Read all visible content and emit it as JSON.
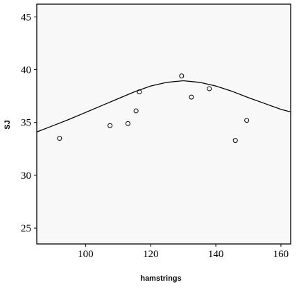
{
  "chart_data": {
    "type": "scatter",
    "title": "",
    "xlabel": "hamstrings",
    "ylabel": "SJ",
    "xlim": [
      85,
      163
    ],
    "ylim": [
      23.5,
      46.2
    ],
    "xticks": [
      100,
      120,
      140,
      160
    ],
    "yticks": [
      25,
      30,
      35,
      40,
      45
    ],
    "grid": false,
    "series": [
      {
        "points": [
          {
            "x": 92,
            "y": 33.5
          },
          {
            "x": 107.5,
            "y": 34.7
          },
          {
            "x": 113,
            "y": 34.9
          },
          {
            "x": 115.5,
            "y": 36.1
          },
          {
            "x": 116.5,
            "y": 37.9
          },
          {
            "x": 129.5,
            "y": 39.4
          },
          {
            "x": 132.5,
            "y": 37.4
          },
          {
            "x": 138,
            "y": 38.2
          },
          {
            "x": 146,
            "y": 33.3
          },
          {
            "x": 149.5,
            "y": 35.2
          }
        ]
      }
    ],
    "fit_curve": {
      "x": [
        85,
        90,
        95,
        100,
        105,
        110,
        115,
        120,
        125,
        130,
        135,
        140,
        145,
        150,
        155,
        160,
        163
      ],
      "y": [
        34.1,
        34.7,
        35.3,
        35.95,
        36.6,
        37.25,
        37.9,
        38.45,
        38.8,
        38.95,
        38.8,
        38.45,
        37.95,
        37.35,
        36.8,
        36.25,
        36.0
      ]
    }
  }
}
